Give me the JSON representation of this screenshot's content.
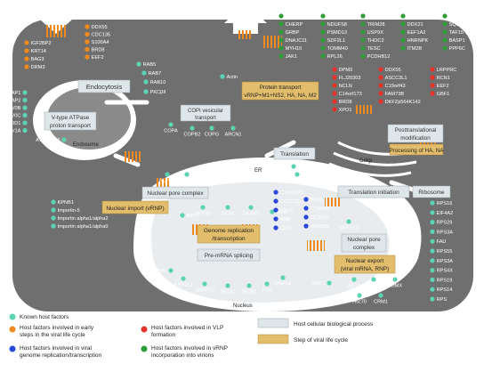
{
  "processes": {
    "endocytosis": "Endocytosis",
    "vatpase_1": "V-type ATPase",
    "vatpase_2": "proton transport",
    "copi_1": "COPI vesicular",
    "copi_2": "transport",
    "translation": "Translation",
    "translation_init": "Translation initiation",
    "ribosome": "Ribosome",
    "npc_top": "Nuclear pore complex",
    "npc_bottom_1": "Nuclear pore",
    "npc_bottom_2": "complex",
    "premrna": "Pre-mRNA splicing",
    "ptm_1": "Posttranslational",
    "ptm_2": "modification"
  },
  "steps": {
    "protein_transport_1": "Protein transport",
    "protein_transport_2": "vRNP+M1+NS2, HA, NA, M2",
    "processing": "Processing of HA, NA",
    "nuclear_import": "Nuclear import (vRNP)",
    "genome_1": "Genome replication",
    "genome_2": "/transcription",
    "export_1": "Nuclear export",
    "export_2": "(viral mRNA, RNP)"
  },
  "compartments": {
    "endosome": "Endosome",
    "er": "ER",
    "golgi": "Golgi",
    "nucleus": "Nucleus"
  },
  "factors": {
    "entry_orange": [
      "IGF2BP2",
      "KRT14",
      "BAG3",
      "DRM3"
    ],
    "top_orange": [
      "DDX55",
      "CDC135",
      "S100A4",
      "BRD8",
      "EEF2"
    ],
    "rab": [
      "RAB5",
      "RAB7",
      "RAB10",
      "PKCβII"
    ],
    "atp_left": [
      "ATP6AP1",
      "ATP6AP2",
      "ATP6V0B",
      "ATP6V0C",
      "ATP6V0D1",
      "ATP6V1A"
    ],
    "atp_bottom": "ATP6V1B2",
    "actin": "Actin",
    "copi_genes": [
      "COPA",
      "COPB2",
      "COPG",
      "ARCN1"
    ],
    "green_col1": [
      "KIAA0664",
      "CHERP",
      "GRBP",
      "DNAJC11",
      "MYH10",
      "JAK1"
    ],
    "green_col2": [
      "MRCL3",
      "NDUFS8",
      "PSMD13",
      "SDF2L1",
      "TOMM40",
      "RPL26"
    ],
    "green_col3": [
      "SDF4",
      "TRIM28",
      "USP9X",
      "THOC2",
      "TESC",
      "PCDHB12"
    ],
    "green_col4": [
      "SFRS2B",
      "DDX21",
      "EEF1A2",
      "HNRNPK",
      "ITM2B"
    ],
    "green_col5": [
      "SNRPC",
      "SQSTM1",
      "TAF15",
      "BASP1",
      "PPP6C"
    ],
    "vlp_col1": [
      "DPM3",
      "FLJ20303",
      "NCLN",
      "C14orf173",
      "BRD8",
      "XPO1"
    ],
    "vlp_col2": [
      "DDX55",
      "ASCC3L1",
      "C19orf43",
      "FAM73B",
      "DKFZp564K142"
    ],
    "vlp_col3": [
      "LRPPRC",
      "RCN1",
      "EEF2",
      "GBF1"
    ],
    "grsf1": "GRSF-1",
    "p58ipk": "P58IPK",
    "nup98": "NUP98",
    "nup153_top": "NUP153",
    "import_genes": [
      "KPNB1",
      "Importin-5",
      "Importin alpha1/alpha2",
      "Importin alpha1/alpha0"
    ],
    "bat1": "BAT1",
    "hsp90": "HSP90",
    "mcm": "MCM",
    "tatsf1": "Tat-SF1",
    "pol2": "PolII",
    "blue_left": [
      "C14orf173",
      "CCDC56",
      "CYC1",
      "NIBP",
      "CLTC"
    ],
    "blue_right": [
      "BUB3",
      "CTNNB1",
      "ZC3H15",
      "ANP32B"
    ],
    "nup153_bottom": "NUP153",
    "ptbp1": "PTBP1",
    "nhp2l1": "NHP2L1",
    "splice_genes": [
      "SNRP70",
      "SF3A1",
      "SF3B1",
      "P14",
      "PRPF8"
    ],
    "nxf1": "NXF1",
    "export_genes": [
      "AKT1",
      "MCM2",
      "RBMX"
    ],
    "hsc70": "Hsc70",
    "crm1": "CRM1",
    "ribosome_genes": [
      "RPS16",
      "EIF4A2",
      "RPS29",
      "RPS3A",
      "FAU",
      "RPS55",
      "RPS3A",
      "RPS4X",
      "RPS19",
      "RPS14",
      "RPS"
    ]
  },
  "legend": {
    "known": "Known host factors",
    "early_1": "Host factors involved in early",
    "early_2": "steps in the viral life cycle",
    "vlp_1": "Host factors involved in VLP",
    "vlp_2": "formation",
    "genome_1": "Host factors involved in viral",
    "genome_2": "genome replication/transcription",
    "vrnp_1": "Host factors involved in vRNP",
    "vrnp_2": "incorporation into virions",
    "process": "Host cellular biological process",
    "step": "Step of viral life cycle"
  },
  "colors": {
    "cell": "#6f6f6f",
    "known": "#5ed3b4",
    "orange": "#f08a1c",
    "red": "#e5342a",
    "blue": "#2747d6",
    "green": "#2f9e3a",
    "process_box": "#dfe6ea",
    "step_box": "#e2bd6b"
  }
}
